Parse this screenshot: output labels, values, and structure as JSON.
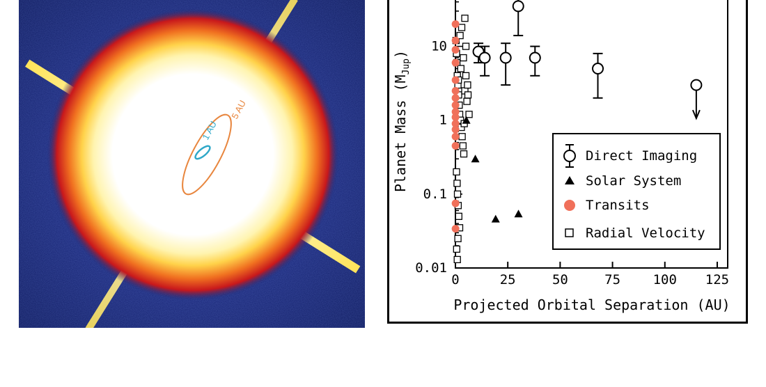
{
  "image": {
    "label_inner_orbit": "1 AU",
    "label_outer_orbit": "5 AU",
    "colors": {
      "background": "#1a2a78",
      "star": "#ffffff",
      "halo_inner": "#ffe15a",
      "halo_outer": "#d0181c",
      "inner_orbit": "#2fa8c8",
      "outer_orbit": "#e8863e"
    }
  },
  "chart_data": {
    "type": "scatter",
    "xlabel": "Projected Orbital Separation (AU)",
    "ylabel": "Planet Mass (M",
    "ylabel_sub": "Jup",
    "ylabel_end": ")",
    "xlim": [
      0,
      130
    ],
    "ylim": [
      0.01,
      60
    ],
    "y_scale": "log",
    "x_ticks": [
      0,
      25,
      50,
      75,
      100,
      125
    ],
    "x_tick_labels": [
      "0",
      "25",
      "50",
      "75",
      "100",
      "125"
    ],
    "y_ticks": [
      0.01,
      0.1,
      1,
      10
    ],
    "y_tick_labels": [
      "0.01",
      "0.1",
      "1",
      "10"
    ],
    "legend_position": "lower-right",
    "series": [
      {
        "name": "Direct Imaging",
        "marker": "open-circle-errorbar",
        "color": "#000000",
        "points": [
          {
            "x": 11,
            "y": 8.5,
            "lo": 6,
            "hi": 11
          },
          {
            "x": 14,
            "y": 7,
            "lo": 4,
            "hi": 10
          },
          {
            "x": 24,
            "y": 7,
            "lo": 3,
            "hi": 11
          },
          {
            "x": 30,
            "y": 35,
            "lo": 14,
            "hi": 44
          },
          {
            "x": 38,
            "y": 7,
            "lo": 4,
            "hi": 10
          },
          {
            "x": 68,
            "y": 5,
            "lo": 2,
            "hi": 8
          },
          {
            "x": 115,
            "y": 3,
            "upper_limit": true
          }
        ]
      },
      {
        "name": "Solar System",
        "marker": "filled-triangle",
        "color": "#000000",
        "points": [
          {
            "x": 5.2,
            "y": 1.0
          },
          {
            "x": 9.5,
            "y": 0.3
          },
          {
            "x": 19.2,
            "y": 0.046
          },
          {
            "x": 30.1,
            "y": 0.054
          }
        ]
      },
      {
        "name": "Transits",
        "marker": "filled-circle",
        "color": "#f0705a",
        "points": [
          {
            "x": 0.05,
            "y": 20
          },
          {
            "x": 0.05,
            "y": 12
          },
          {
            "x": 0.04,
            "y": 9
          },
          {
            "x": 0.05,
            "y": 6
          },
          {
            "x": 0.06,
            "y": 3.5
          },
          {
            "x": 0.05,
            "y": 2.5
          },
          {
            "x": 0.04,
            "y": 2
          },
          {
            "x": 0.05,
            "y": 1.6
          },
          {
            "x": 0.05,
            "y": 1.3
          },
          {
            "x": 0.04,
            "y": 1.1
          },
          {
            "x": 0.05,
            "y": 0.9
          },
          {
            "x": 0.05,
            "y": 0.75
          },
          {
            "x": 0.04,
            "y": 0.6
          },
          {
            "x": 0.05,
            "y": 0.45
          },
          {
            "x": 0.05,
            "y": 0.075
          },
          {
            "x": 0.05,
            "y": 0.034
          }
        ]
      },
      {
        "name": "Radial Velocity",
        "marker": "open-square",
        "color": "#000000",
        "points": [
          {
            "x": 0.3,
            "y": 12
          },
          {
            "x": 0.5,
            "y": 8
          },
          {
            "x": 0.7,
            "y": 6
          },
          {
            "x": 0.9,
            "y": 4
          },
          {
            "x": 1.2,
            "y": 3
          },
          {
            "x": 1.5,
            "y": 2.2
          },
          {
            "x": 1.8,
            "y": 1.6
          },
          {
            "x": 2.0,
            "y": 1.2
          },
          {
            "x": 2.4,
            "y": 1.0
          },
          {
            "x": 2.8,
            "y": 0.8
          },
          {
            "x": 3.2,
            "y": 0.6
          },
          {
            "x": 3.6,
            "y": 0.45
          },
          {
            "x": 4.0,
            "y": 0.35
          },
          {
            "x": 4.5,
            "y": 2.5
          },
          {
            "x": 5.0,
            "y": 4
          },
          {
            "x": 5.5,
            "y": 1.8
          },
          {
            "x": 6.0,
            "y": 2.2
          },
          {
            "x": 0.5,
            "y": 0.2
          },
          {
            "x": 0.8,
            "y": 0.14
          },
          {
            "x": 1.0,
            "y": 0.1
          },
          {
            "x": 1.3,
            "y": 0.07
          },
          {
            "x": 1.6,
            "y": 0.05
          },
          {
            "x": 2.0,
            "y": 0.035
          },
          {
            "x": 1.2,
            "y": 0.025
          },
          {
            "x": 0.6,
            "y": 0.018
          },
          {
            "x": 0.9,
            "y": 0.013
          },
          {
            "x": 4.5,
            "y": 24
          },
          {
            "x": 3.0,
            "y": 18
          },
          {
            "x": 2.2,
            "y": 14
          },
          {
            "x": 5.0,
            "y": 10
          },
          {
            "x": 3.8,
            "y": 7
          },
          {
            "x": 6.5,
            "y": 1.2
          },
          {
            "x": 4.2,
            "y": 0.9
          },
          {
            "x": 2.6,
            "y": 5
          },
          {
            "x": 1.4,
            "y": 3.5
          },
          {
            "x": 5.8,
            "y": 3
          }
        ]
      }
    ]
  }
}
